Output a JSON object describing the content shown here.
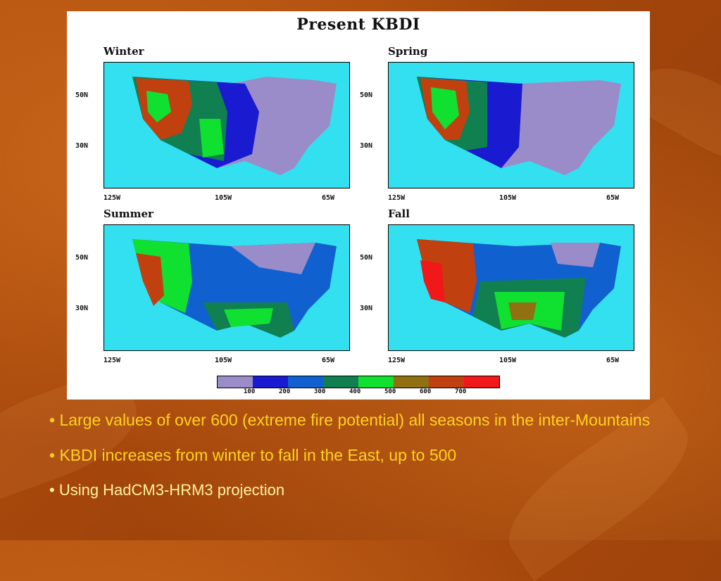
{
  "figure": {
    "title": "Present KBDI",
    "panels": [
      {
        "label": "Winter",
        "x_ticks": [
          "125W",
          "105W",
          "65W"
        ],
        "y_ticks": [
          "50N",
          "30N"
        ]
      },
      {
        "label": "Spring",
        "x_ticks": [
          "125W",
          "105W",
          "65W"
        ],
        "y_ticks": [
          "50N",
          "30N"
        ]
      },
      {
        "label": "Summer",
        "x_ticks": [
          "125W",
          "105W",
          "65W"
        ],
        "y_ticks": [
          "50N",
          "30N"
        ]
      },
      {
        "label": "Fall",
        "x_ticks": [
          "125W",
          "105W",
          "65W"
        ],
        "y_ticks": [
          "50N",
          "30N"
        ]
      }
    ],
    "colorbar": {
      "colors": [
        "#9a8cc8",
        "#1a1ad0",
        "#1060d0",
        "#108050",
        "#10e030",
        "#907010",
        "#c04010",
        "#f01818"
      ],
      "labels": [
        "100",
        "200",
        "300",
        "400",
        "500",
        "600",
        "700"
      ]
    }
  },
  "bullets": [
    "• Large values of over 600 (extreme fire potential) all seasons in the inter-Mountains",
    "• KBDI increases from winter to fall in the East, up to 500",
    "• Using HadCM3-HRM3 projection"
  ]
}
